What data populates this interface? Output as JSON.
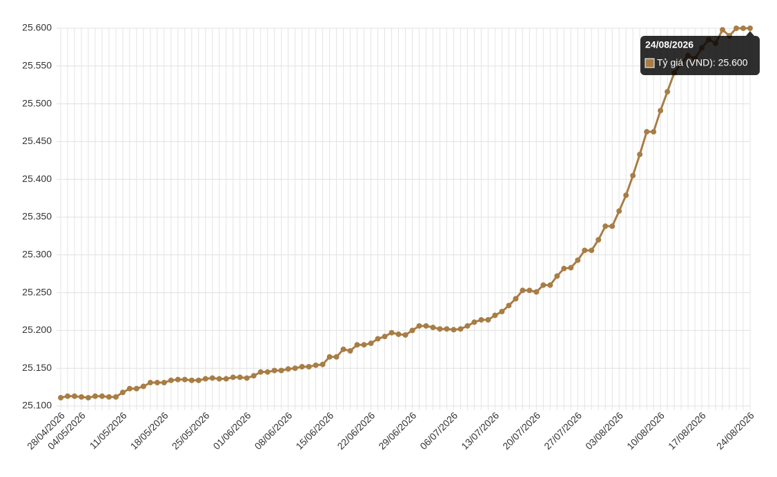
{
  "chart_data": {
    "type": "line",
    "categories": [
      "28/04/2026",
      null,
      null,
      "04/05/2026",
      null,
      null,
      null,
      null,
      null,
      "11/05/2026",
      null,
      null,
      null,
      null,
      null,
      "18/05/2026",
      null,
      null,
      null,
      null,
      null,
      "25/05/2026",
      null,
      null,
      null,
      null,
      null,
      "01/06/2026",
      null,
      null,
      null,
      null,
      null,
      "08/06/2026",
      null,
      null,
      null,
      null,
      null,
      "15/06/2026",
      null,
      null,
      null,
      null,
      null,
      "22/06/2026",
      null,
      null,
      null,
      null,
      null,
      "29/06/2026",
      null,
      null,
      null,
      null,
      null,
      "06/07/2026",
      null,
      null,
      null,
      null,
      null,
      "13/07/2026",
      null,
      null,
      null,
      null,
      null,
      "20/07/2026",
      null,
      null,
      null,
      null,
      null,
      "27/07/2026",
      null,
      null,
      null,
      null,
      null,
      "03/08/2026",
      null,
      null,
      null,
      null,
      null,
      "10/08/2026",
      null,
      null,
      null,
      null,
      null,
      "17/08/2026",
      null,
      null,
      null,
      null,
      null,
      null,
      "24/08/2026"
    ],
    "series": [
      {
        "name": "Tỷ giá (VND)",
        "color": "#a87d45",
        "values": [
          25111,
          25113,
          25113,
          25112,
          25111,
          25113,
          25113,
          25112,
          25112,
          25118,
          25123,
          25123,
          25126,
          25131,
          25131,
          25131,
          25134,
          25135,
          25135,
          25134,
          25134,
          25136,
          25137,
          25136,
          25136,
          25138,
          25138,
          25137,
          25140,
          25145,
          25145,
          25147,
          25147,
          25149,
          25150,
          25152,
          25152,
          25154,
          25155,
          25165,
          25165,
          25175,
          25173,
          25181,
          25181,
          25183,
          25189,
          25192,
          25197,
          25195,
          25194,
          25200,
          25206,
          25206,
          25204,
          25202,
          25202,
          25201,
          25202,
          25206,
          25211,
          25214,
          25214,
          25220,
          25225,
          25233,
          25242,
          25253,
          25253,
          25251,
          25260,
          25260,
          25272,
          25282,
          25283,
          25293,
          25306,
          25306,
          25320,
          25338,
          25338,
          25358,
          25379,
          25405,
          25433,
          25463,
          25463,
          25491,
          25516,
          25541,
          25553,
          25564,
          25560,
          25574,
          25585,
          25580,
          25598,
          25590,
          25600,
          25600,
          25600
        ]
      }
    ],
    "ylim": [
      25100,
      25600
    ],
    "yticks": [
      {
        "value": 25100,
        "label": "25.100"
      },
      {
        "value": 25150,
        "label": "25.150"
      },
      {
        "value": 25200,
        "label": "25.200"
      },
      {
        "value": 25250,
        "label": "25.250"
      },
      {
        "value": 25300,
        "label": "25.300"
      },
      {
        "value": 25350,
        "label": "25.350"
      },
      {
        "value": 25400,
        "label": "25.400"
      },
      {
        "value": 25450,
        "label": "25.450"
      },
      {
        "value": 25500,
        "label": "25.500"
      },
      {
        "value": 25550,
        "label": "25.550"
      },
      {
        "value": 25600,
        "label": "25.600"
      }
    ],
    "grid": true,
    "tooltip": {
      "title": "24/08/2026",
      "body": "Tỷ giá (VND): 25.600"
    }
  }
}
